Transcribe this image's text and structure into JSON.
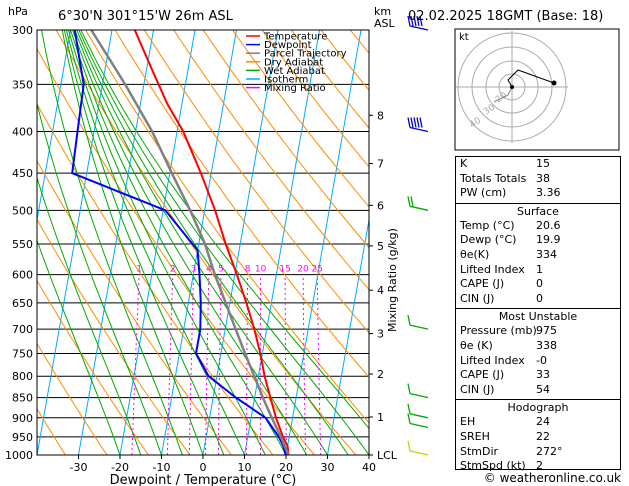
{
  "header": {
    "location": "6°30'N  301°15'W  26m  ASL",
    "datetime": "02.02.2025  18GMT  (Base: 18)",
    "hpa_label": "hPa",
    "km_label": "km",
    "asl_label": "ASL",
    "mixing_axis": "Mixing Ratio (g/kg)"
  },
  "legend": [
    {
      "label": "Temperature",
      "color": "#ff0000"
    },
    {
      "label": "Dewpoint",
      "color": "#0000ff"
    },
    {
      "label": "Parcel Trajectory",
      "color": "#808080"
    },
    {
      "label": "Dry Adiabat",
      "color": "#ff8c00"
    },
    {
      "label": "Wet Adiabat",
      "color": "#00aa00"
    },
    {
      "label": "Isotherm",
      "color": "#00aaff"
    },
    {
      "label": "Mixing Ratio",
      "color": "#ff00ff"
    }
  ],
  "chart_data": {
    "type": "line",
    "title": "",
    "xlabel": "Dewpoint / Temperature (°C)",
    "ylabel": "hPa",
    "pressure_levels": [
      300,
      350,
      400,
      450,
      500,
      550,
      600,
      650,
      700,
      750,
      800,
      850,
      900,
      950,
      1000
    ],
    "x_ticks": [
      -30,
      -20,
      -10,
      0,
      10,
      20,
      30,
      40
    ],
    "xlim": [
      -40,
      40
    ],
    "km_ticks": [
      {
        "p": 382,
        "label": "8"
      },
      {
        "p": 438,
        "label": "7"
      },
      {
        "p": 493,
        "label": "6"
      },
      {
        "p": 553,
        "label": "5"
      },
      {
        "p": 627,
        "label": "4"
      },
      {
        "p": 709,
        "label": "3"
      },
      {
        "p": 795,
        "label": "2"
      },
      {
        "p": 898,
        "label": "1"
      },
      {
        "p": 1000,
        "label": "LCL"
      }
    ],
    "mixing_ratio_labels": [
      "1",
      "2",
      "3",
      "4",
      "5",
      "8",
      "10",
      "15",
      "20",
      "25"
    ],
    "mixing_ratio_level": 600,
    "series": [
      {
        "name": "Temperature",
        "color": "#ff0000",
        "points": [
          [
            1000,
            20.6
          ],
          [
            975,
            20.0
          ],
          [
            950,
            18.5
          ],
          [
            900,
            16.0
          ],
          [
            850,
            13.8
          ],
          [
            800,
            11.5
          ],
          [
            750,
            9.5
          ],
          [
            700,
            7.0
          ],
          [
            650,
            4.0
          ],
          [
            600,
            0.5
          ],
          [
            550,
            -3.5
          ],
          [
            500,
            -7.5
          ],
          [
            450,
            -12.5
          ],
          [
            400,
            -18.5
          ],
          [
            370,
            -23.5
          ],
          [
            340,
            -28
          ],
          [
            300,
            -34.5
          ]
        ]
      },
      {
        "name": "Dewpoint",
        "color": "#0000ff",
        "points": [
          [
            1000,
            19.9
          ],
          [
            975,
            19.0
          ],
          [
            950,
            17.5
          ],
          [
            900,
            13.5
          ],
          [
            850,
            5.5
          ],
          [
            800,
            -2.0
          ],
          [
            750,
            -6.0
          ],
          [
            700,
            -6.0
          ],
          [
            650,
            -7.0
          ],
          [
            600,
            -8.5
          ],
          [
            560,
            -10.0
          ],
          [
            500,
            -19.5
          ],
          [
            450,
            -43.5
          ],
          [
            400,
            -44.0
          ],
          [
            350,
            -44.5
          ],
          [
            300,
            -49
          ]
        ]
      },
      {
        "name": "Parcel Trajectory",
        "color": "#808080",
        "points": [
          [
            1000,
            20.6
          ],
          [
            950,
            18.0
          ],
          [
            900,
            15.0
          ],
          [
            850,
            12.0
          ],
          [
            800,
            9.0
          ],
          [
            750,
            5.8
          ],
          [
            700,
            2.5
          ],
          [
            650,
            -1.0
          ],
          [
            600,
            -4.8
          ],
          [
            550,
            -8.5
          ],
          [
            500,
            -13.5
          ],
          [
            450,
            -19.5
          ],
          [
            400,
            -26.0
          ],
          [
            350,
            -34.5
          ],
          [
            300,
            -45.0
          ]
        ]
      }
    ],
    "wind_barbs": [
      {
        "p": 300,
        "speed": 55
      },
      {
        "p": 400,
        "speed": 55
      },
      {
        "p": 500,
        "speed": 10
      },
      {
        "p": 700,
        "speed": 5
      },
      {
        "p": 850,
        "speed": 5
      },
      {
        "p": 900,
        "speed": 5
      },
      {
        "p": 925,
        "speed": 5
      },
      {
        "p": 1000,
        "speed": 2
      }
    ]
  },
  "hodograph": {
    "label": "kt",
    "ring_labels": [
      "20",
      "30",
      "40"
    ]
  },
  "indices": [
    {
      "label": "K",
      "value": "15"
    },
    {
      "label": "Totals Totals",
      "value": "38"
    },
    {
      "label": "PW (cm)",
      "value": "3.36"
    }
  ],
  "surface": {
    "title": "Surface",
    "rows": [
      {
        "label": "Temp (°C)",
        "value": "20.6"
      },
      {
        "label": "Dewp (°C)",
        "value": "19.9"
      },
      {
        "label": "θe(K)",
        "value": "334"
      },
      {
        "label": "Lifted Index",
        "value": "1"
      },
      {
        "label": "CAPE (J)",
        "value": "0"
      },
      {
        "label": "CIN (J)",
        "value": "0"
      }
    ]
  },
  "most_unstable": {
    "title": "Most Unstable",
    "rows": [
      {
        "label": "Pressure (mb)",
        "value": "975"
      },
      {
        "label": "θe (K)",
        "value": "338"
      },
      {
        "label": "Lifted Index",
        "value": "-0"
      },
      {
        "label": "CAPE (J)",
        "value": "33"
      },
      {
        "label": "CIN (J)",
        "value": "54"
      }
    ]
  },
  "hodo_table": {
    "title": "Hodograph",
    "rows": [
      {
        "label": "EH",
        "value": "24"
      },
      {
        "label": "SREH",
        "value": "22"
      },
      {
        "label": "StmDir",
        "value": "272°"
      },
      {
        "label": "StmSpd (kt)",
        "value": "2"
      }
    ]
  },
  "footer": "© weatheronline.co.uk"
}
